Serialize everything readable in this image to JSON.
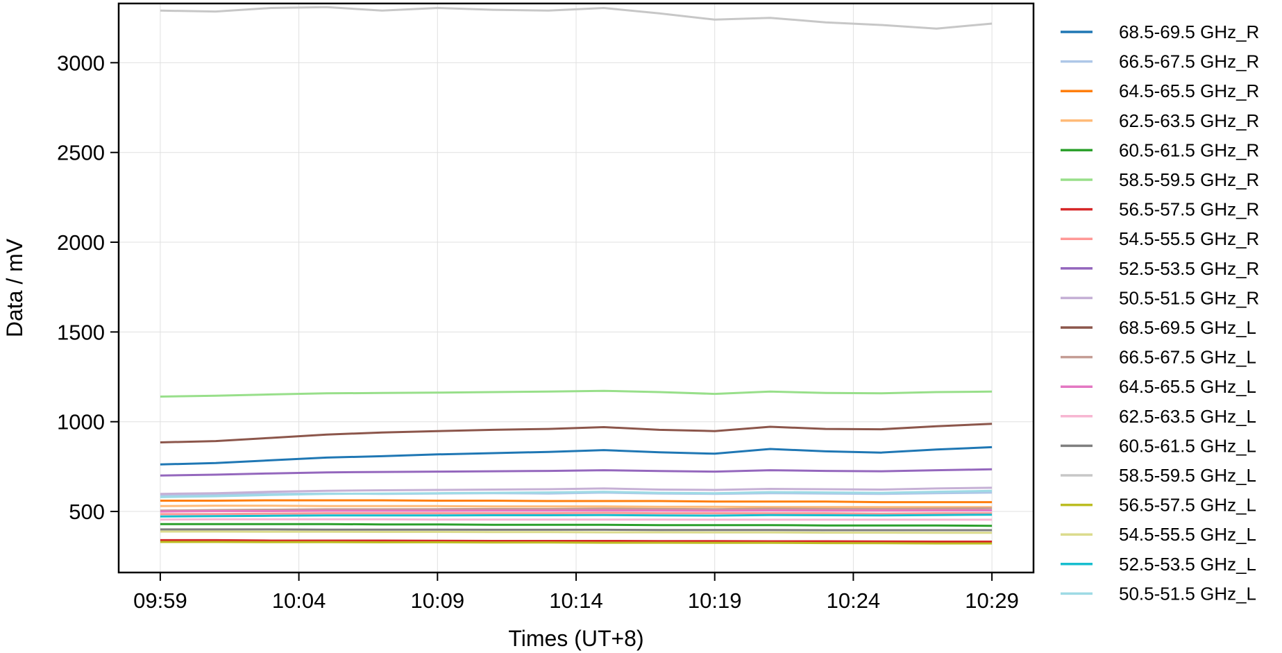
{
  "chart_data": {
    "type": "line",
    "title": "",
    "xlabel": "Times (UT+8)",
    "ylabel": "Data / mV",
    "x_ticks": [
      "09:59",
      "10:04",
      "10:09",
      "10:14",
      "10:19",
      "10:24",
      "10:29"
    ],
    "x": [
      "09:59",
      "10:01",
      "10:03",
      "10:05",
      "10:07",
      "10:09",
      "10:11",
      "10:13",
      "10:15",
      "10:17",
      "10:19",
      "10:21",
      "10:23",
      "10:25",
      "10:27",
      "10:29"
    ],
    "xlim": [
      "09:57:30",
      "10:30:30"
    ],
    "y_ticks": [
      500,
      1000,
      1500,
      2000,
      2500,
      3000
    ],
    "ylim": [
      160,
      3330
    ],
    "grid": true,
    "legend_position": "outside-right",
    "series": [
      {
        "name": "68.5-69.5 GHz_R",
        "color": "#1f77b4",
        "values": [
          762,
          770,
          785,
          800,
          808,
          818,
          825,
          832,
          842,
          830,
          822,
          848,
          835,
          828,
          845,
          858
        ]
      },
      {
        "name": "66.5-67.5 GHz_R",
        "color": "#aec7e8",
        "values": [
          590,
          595,
          598,
          600,
          598,
          600,
          602,
          600,
          605,
          600,
          598,
          602,
          600,
          598,
          602,
          605
        ]
      },
      {
        "name": "64.5-65.5 GHz_R",
        "color": "#ff7f0e",
        "values": [
          560,
          560,
          562,
          562,
          562,
          560,
          560,
          558,
          558,
          558,
          555,
          555,
          555,
          552,
          552,
          552
        ]
      },
      {
        "name": "62.5-63.5 GHz_R",
        "color": "#ffbb78",
        "values": [
          530,
          532,
          532,
          530,
          530,
          530,
          528,
          528,
          528,
          526,
          526,
          525,
          525,
          524,
          524,
          524
        ]
      },
      {
        "name": "60.5-61.5 GHz_R",
        "color": "#2ca02c",
        "values": [
          430,
          430,
          430,
          430,
          428,
          428,
          426,
          426,
          426,
          424,
          424,
          424,
          422,
          422,
          422,
          420
        ]
      },
      {
        "name": "58.5-59.5 GHz_R",
        "color": "#98df8a",
        "values": [
          1140,
          1145,
          1152,
          1158,
          1160,
          1162,
          1165,
          1168,
          1172,
          1165,
          1155,
          1168,
          1160,
          1158,
          1165,
          1168
        ]
      },
      {
        "name": "56.5-57.5 GHz_R",
        "color": "#d62728",
        "values": [
          340,
          340,
          338,
          338,
          338,
          337,
          336,
          336,
          336,
          335,
          335,
          334,
          334,
          333,
          332,
          332
        ]
      },
      {
        "name": "54.5-55.5 GHz_R",
        "color": "#ff9896",
        "values": [
          485,
          486,
          488,
          490,
          490,
          490,
          490,
          490,
          492,
          490,
          490,
          490,
          490,
          488,
          490,
          490
        ]
      },
      {
        "name": "52.5-53.5 GHz_R",
        "color": "#9467bd",
        "values": [
          700,
          705,
          712,
          718,
          720,
          722,
          724,
          726,
          730,
          725,
          722,
          730,
          726,
          724,
          730,
          735
        ]
      },
      {
        "name": "50.5-51.5 GHz_R",
        "color": "#c5b0d5",
        "values": [
          598,
          602,
          610,
          615,
          618,
          620,
          622,
          624,
          628,
          622,
          620,
          626,
          624,
          622,
          628,
          632
        ]
      },
      {
        "name": "68.5-69.5 GHz_L",
        "color": "#8c564b",
        "values": [
          885,
          892,
          910,
          928,
          940,
          948,
          955,
          960,
          970,
          955,
          948,
          972,
          960,
          958,
          975,
          988
        ]
      },
      {
        "name": "66.5-67.5 GHz_L",
        "color": "#c49c94",
        "values": [
          505,
          508,
          510,
          512,
          512,
          513,
          514,
          514,
          516,
          514,
          513,
          516,
          515,
          514,
          516,
          518
        ]
      },
      {
        "name": "64.5-65.5 GHz_L",
        "color": "#e377c2",
        "values": [
          500,
          502,
          502,
          504,
          504,
          504,
          505,
          505,
          506,
          505,
          504,
          506,
          505,
          505,
          506,
          506
        ]
      },
      {
        "name": "62.5-63.5 GHz_L",
        "color": "#f7b6d2",
        "values": [
          455,
          456,
          456,
          456,
          456,
          455,
          455,
          455,
          455,
          455,
          454,
          454,
          454,
          454,
          454,
          454
        ]
      },
      {
        "name": "60.5-61.5 GHz_L",
        "color": "#7f7f7f",
        "values": [
          400,
          400,
          400,
          399,
          399,
          399,
          398,
          398,
          398,
          397,
          397,
          397,
          396,
          396,
          396,
          396
        ]
      },
      {
        "name": "58.5-59.5 GHz_L",
        "color": "#c7c7c7",
        "values": [
          3290,
          3285,
          3305,
          3310,
          3290,
          3305,
          3295,
          3290,
          3305,
          3275,
          3240,
          3250,
          3225,
          3210,
          3190,
          3218
        ]
      },
      {
        "name": "56.5-57.5 GHz_L",
        "color": "#bcbd22",
        "values": [
          330,
          330,
          329,
          329,
          328,
          328,
          327,
          327,
          326,
          326,
          325,
          325,
          324,
          323,
          322,
          322
        ]
      },
      {
        "name": "54.5-55.5 GHz_L",
        "color": "#dbdb8d",
        "values": [
          388,
          388,
          387,
          387,
          386,
          386,
          385,
          385,
          384,
          384,
          383,
          383,
          382,
          382,
          381,
          381
        ]
      },
      {
        "name": "52.5-53.5 GHz_L",
        "color": "#17becf",
        "values": [
          472,
          474,
          476,
          478,
          478,
          478,
          479,
          479,
          480,
          478,
          477,
          480,
          479,
          478,
          480,
          482
        ]
      },
      {
        "name": "50.5-51.5 GHz_L",
        "color": "#9edae5",
        "values": [
          580,
          585,
          592,
          598,
          600,
          602,
          604,
          606,
          610,
          604,
          602,
          608,
          606,
          604,
          610,
          615
        ]
      }
    ]
  }
}
